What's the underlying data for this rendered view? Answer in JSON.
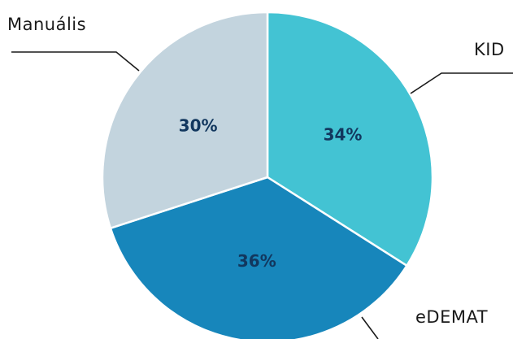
{
  "chart_data": {
    "type": "pie",
    "title": "",
    "slices": [
      {
        "label": "KID",
        "value": 34,
        "value_label": "34%",
        "color": "#43c3d3"
      },
      {
        "label": "eDEMAT",
        "value": 36,
        "value_label": "36%",
        "color": "#1786bb"
      },
      {
        "label": "Manuális",
        "value": 30,
        "value_label": "30%",
        "color": "#c3d4de"
      }
    ],
    "start": "12 o'clock",
    "direction": "clockwise",
    "legend": "none",
    "labels": "outside with leader lines"
  }
}
